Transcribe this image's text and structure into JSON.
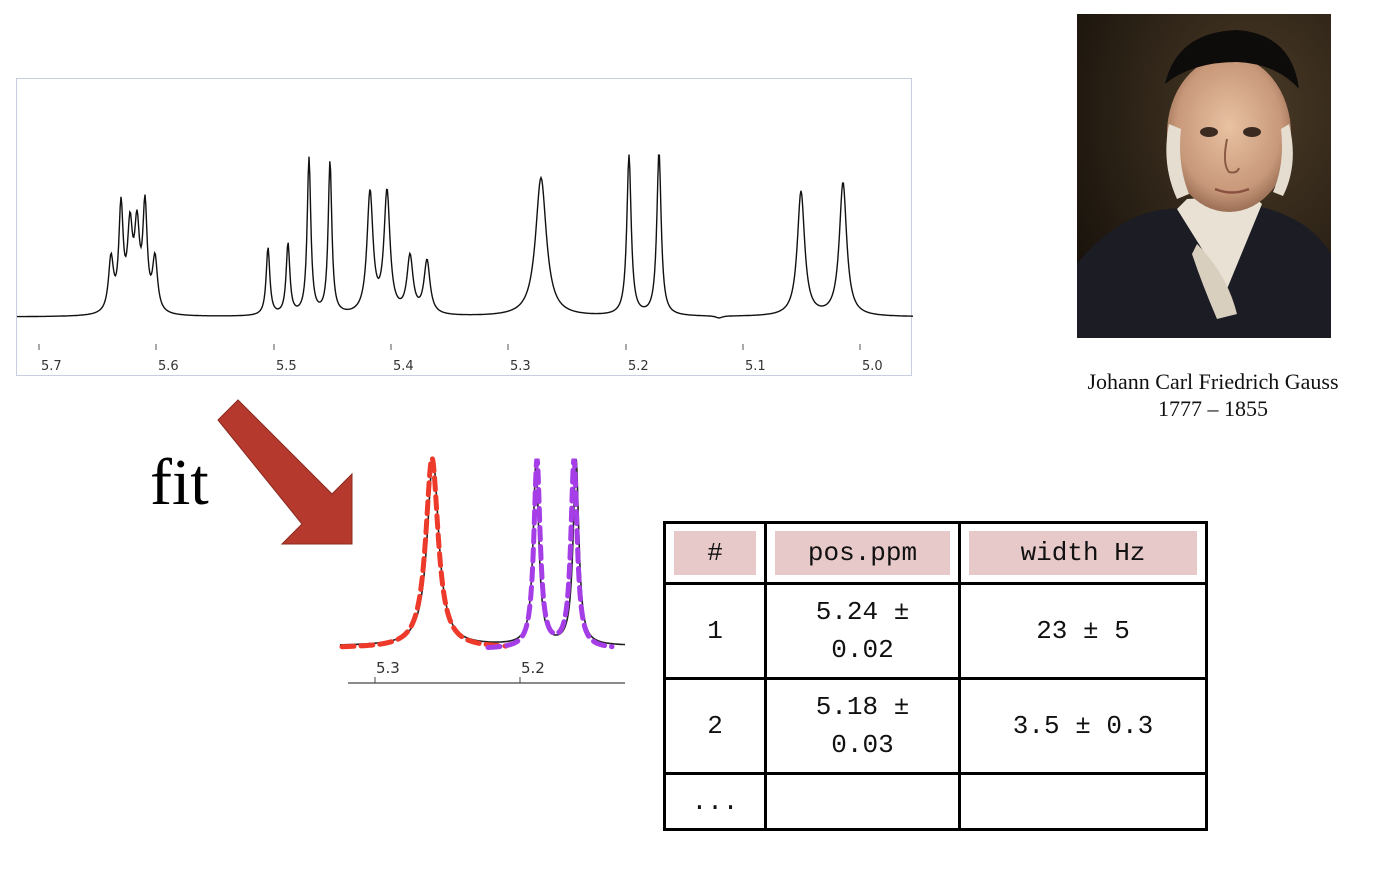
{
  "spectrum": {
    "ticks": [
      "5.7",
      "5.6",
      "5.5",
      "5.4",
      "5.3",
      "5.2",
      "5.1",
      "5.0"
    ],
    "line_color": "#111111"
  },
  "fit": {
    "label": "fit",
    "arrow_color": "#b5392c",
    "ticks": [
      "5.3",
      "5.2"
    ],
    "fit_colors": [
      "#ee3a2a",
      "#a63ee8"
    ]
  },
  "portrait": {
    "caption_name": "Johann Carl Friedrich Gauss",
    "caption_years": "1777 – 1855"
  },
  "table": {
    "headers": [
      "#",
      "pos.ppm",
      "width Hz"
    ],
    "header_color": "#e8c9c9",
    "rows": [
      {
        "num": "1",
        "pos_line1": "5.24 ±",
        "pos_line2": "0.02",
        "width": "23 ± 5"
      },
      {
        "num": "2",
        "pos_line1": "5.18 ±",
        "pos_line2": "0.03",
        "width": "3.5 ± 0.3"
      },
      {
        "num": "...",
        "pos_line1": "",
        "pos_line2": "",
        "width": ""
      }
    ]
  }
}
